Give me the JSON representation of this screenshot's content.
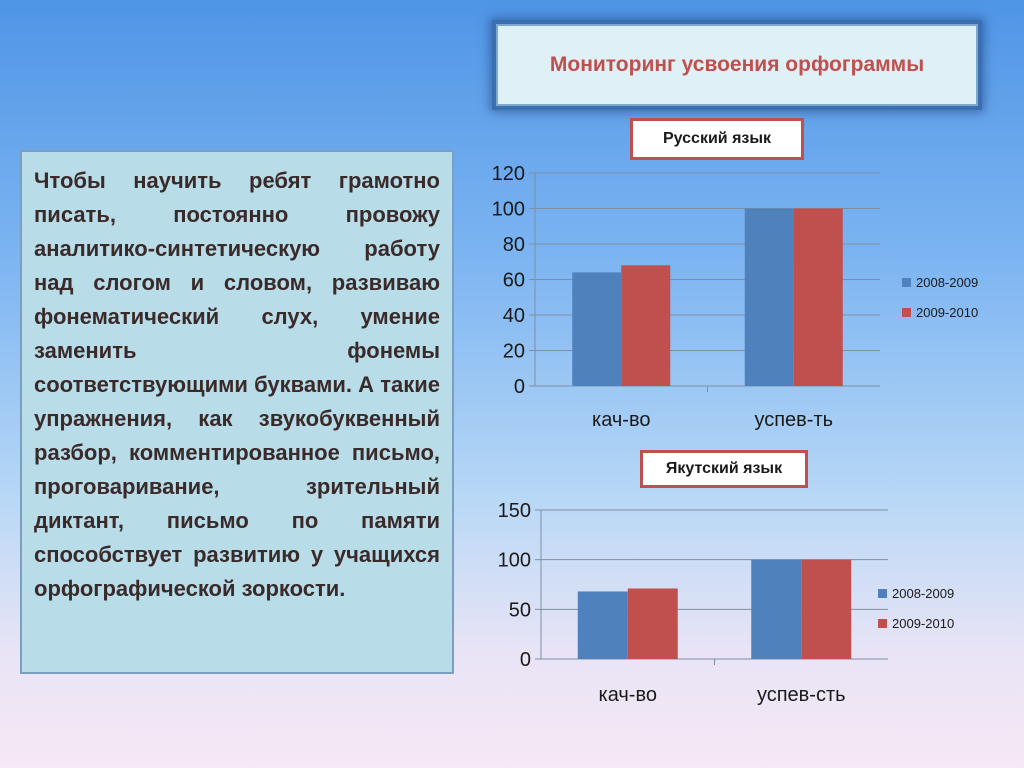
{
  "title": "Мониторинг усвоения орфограммы",
  "body_text": "Чтобы научить ребят грамотно писать, постоянно провожу аналитико-синтетическую работу над слогом и словом, развиваю фонематический слух, умение заменить фонемы соответствующими буквами. А такие упражнения, как звукобуквенный разбор, комментированное письмо, проговаривание, зрительный диктант, письмо по памяти способствует развитию у учащихся орфографической зоркости.",
  "chart_data": [
    {
      "type": "bar",
      "title": "Русский язык",
      "categories": [
        "кач-во",
        "успев-ть"
      ],
      "series": [
        {
          "name": "2008-2009",
          "values": [
            64,
            100
          ],
          "color": "#4f81bd"
        },
        {
          "name": "2009-2010",
          "values": [
            68,
            100
          ],
          "color": "#c0504d"
        }
      ],
      "ylim": [
        0,
        120
      ],
      "yticks": [
        0,
        20,
        40,
        60,
        80,
        100,
        120
      ],
      "grid": true,
      "legend": "right"
    },
    {
      "type": "bar",
      "title": "Якутский язык",
      "categories": [
        "кач-во",
        "успев-сть"
      ],
      "series": [
        {
          "name": "2008-2009",
          "values": [
            68,
            100
          ],
          "color": "#4f81bd"
        },
        {
          "name": "2009-2010",
          "values": [
            71,
            100
          ],
          "color": "#c0504d"
        }
      ],
      "ylim": [
        0,
        150
      ],
      "yticks": [
        0,
        50,
        100,
        150
      ],
      "grid": true,
      "legend": "right"
    }
  ]
}
